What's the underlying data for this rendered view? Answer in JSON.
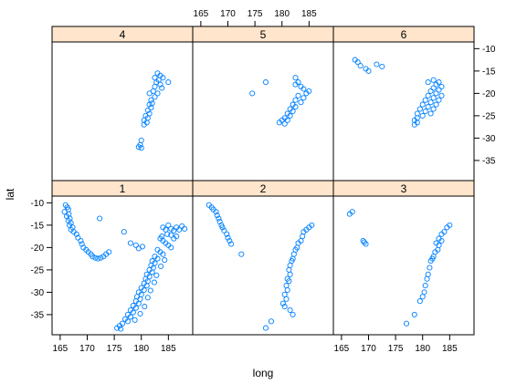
{
  "colors": {
    "point": "#0080ff",
    "strip": "#ffe5cc",
    "frame": "#000000"
  },
  "chart_data": {
    "type": "scatter",
    "layout": "lattice 3x2",
    "xlabel": "long",
    "ylabel": "lat",
    "xlim": [
      163.5,
      189.5
    ],
    "ylim": [
      -39.5,
      -8.5
    ],
    "xticks": [
      165,
      170,
      175,
      180,
      185
    ],
    "yticks": [
      -35,
      -30,
      -25,
      -20,
      -15,
      -10
    ],
    "xtick_labels": [
      "165",
      "170",
      "175",
      "180",
      "185"
    ],
    "ytick_labels": [
      "-35",
      "-30",
      "-25",
      "-20",
      "-15",
      "-10"
    ],
    "panels": [
      {
        "label": "1",
        "points": [
          [
            166,
            -10.5
          ],
          [
            166.3,
            -11
          ],
          [
            166.5,
            -11.5
          ],
          [
            165.8,
            -12
          ],
          [
            166.6,
            -12.5
          ],
          [
            166.2,
            -13
          ],
          [
            166.8,
            -13.5
          ],
          [
            166.5,
            -14
          ],
          [
            167,
            -14.5
          ],
          [
            166.7,
            -15
          ],
          [
            167.3,
            -15.5
          ],
          [
            167,
            -16
          ],
          [
            167.5,
            -16.5
          ],
          [
            168,
            -17
          ],
          [
            168.3,
            -17.8
          ],
          [
            168.8,
            -18.5
          ],
          [
            169,
            -19.2
          ],
          [
            169.3,
            -20
          ],
          [
            169.8,
            -20.5
          ],
          [
            170.2,
            -21
          ],
          [
            170.7,
            -21.5
          ],
          [
            171,
            -22
          ],
          [
            171.5,
            -22.3
          ],
          [
            172,
            -22.5
          ],
          [
            172.5,
            -22.3
          ],
          [
            173,
            -22
          ],
          [
            173.5,
            -21.5
          ],
          [
            174,
            -21
          ],
          [
            172.3,
            -13.5
          ],
          [
            176.8,
            -16.5
          ],
          [
            178,
            -19
          ],
          [
            179,
            -19.5
          ],
          [
            179.5,
            -20.2
          ],
          [
            180.2,
            -19.8
          ],
          [
            184,
            -15.5
          ],
          [
            184.5,
            -16
          ],
          [
            185,
            -15
          ],
          [
            185.5,
            -15.8
          ],
          [
            186,
            -16.2
          ],
          [
            186.5,
            -15.5
          ],
          [
            187,
            -16
          ],
          [
            187.5,
            -15.2
          ],
          [
            188,
            -15.8
          ],
          [
            183.5,
            -18
          ],
          [
            184,
            -18.5
          ],
          [
            184.5,
            -19
          ],
          [
            185,
            -19.5
          ],
          [
            185.5,
            -20
          ],
          [
            183,
            -20.5
          ],
          [
            183.5,
            -21
          ],
          [
            184,
            -21.5
          ],
          [
            182.5,
            -22
          ],
          [
            183,
            -22.5
          ],
          [
            182,
            -23
          ],
          [
            182.5,
            -23.5
          ],
          [
            181.8,
            -24
          ],
          [
            182.2,
            -24.5
          ],
          [
            181.5,
            -25
          ],
          [
            182,
            -25.5
          ],
          [
            181,
            -26
          ],
          [
            181.5,
            -26.5
          ],
          [
            180.8,
            -27
          ],
          [
            181.2,
            -27.5
          ],
          [
            180.5,
            -28
          ],
          [
            181,
            -28.5
          ],
          [
            180,
            -29
          ],
          [
            180.5,
            -29.5
          ],
          [
            179.5,
            -30
          ],
          [
            180,
            -30.5
          ],
          [
            179.2,
            -31
          ],
          [
            179.8,
            -31.5
          ],
          [
            179,
            -32
          ],
          [
            179.5,
            -32.5
          ],
          [
            178.5,
            -33
          ],
          [
            179,
            -33.5
          ],
          [
            178,
            -34
          ],
          [
            178.5,
            -34.5
          ],
          [
            177.5,
            -35
          ],
          [
            178,
            -35.5
          ],
          [
            177,
            -36
          ],
          [
            177.5,
            -36.5
          ],
          [
            176.5,
            -37
          ],
          [
            176,
            -37.5
          ],
          [
            175.5,
            -38
          ],
          [
            176.2,
            -38.2
          ],
          [
            185.5,
            -17.2
          ],
          [
            186,
            -18
          ],
          [
            186.5,
            -17.5
          ],
          [
            184.8,
            -17
          ],
          [
            183.8,
            -17.5
          ],
          [
            184.3,
            -22.8
          ],
          [
            183.6,
            -24.2
          ],
          [
            182.8,
            -26.2
          ],
          [
            182.4,
            -27.8
          ],
          [
            181.7,
            -29.6
          ],
          [
            181.2,
            -31.2
          ],
          [
            180.6,
            -33.2
          ],
          [
            179.8,
            -34.8
          ],
          [
            178.8,
            -36.2
          ]
        ]
      },
      {
        "label": "2",
        "points": [
          [
            166.5,
            -10.5
          ],
          [
            167,
            -11
          ],
          [
            167.3,
            -11.5
          ],
          [
            167.8,
            -12
          ],
          [
            168,
            -12.8
          ],
          [
            168.3,
            -13.5
          ],
          [
            168.5,
            -14.2
          ],
          [
            168.8,
            -15
          ],
          [
            169,
            -15.5
          ],
          [
            169.3,
            -16.2
          ],
          [
            169.8,
            -17
          ],
          [
            170,
            -17.8
          ],
          [
            170.3,
            -18.5
          ],
          [
            170.6,
            -19.2
          ],
          [
            172.5,
            -21.5
          ],
          [
            185.5,
            -15
          ],
          [
            185,
            -15.5
          ],
          [
            184.5,
            -16
          ],
          [
            184,
            -16.5
          ],
          [
            183.8,
            -17.5
          ],
          [
            183.5,
            -18.5
          ],
          [
            183,
            -19
          ],
          [
            182.8,
            -20
          ],
          [
            182.5,
            -20.5
          ],
          [
            182.2,
            -21.5
          ],
          [
            182,
            -22.5
          ],
          [
            181.8,
            -23
          ],
          [
            181.5,
            -24
          ],
          [
            181.3,
            -25
          ],
          [
            181.5,
            -26
          ],
          [
            181,
            -27
          ],
          [
            181.3,
            -27.5
          ],
          [
            180.8,
            -28.5
          ],
          [
            181,
            -29.5
          ],
          [
            180.5,
            -30.5
          ],
          [
            180.8,
            -31.5
          ],
          [
            180.2,
            -32.5
          ],
          [
            180.5,
            -33.2
          ],
          [
            181.5,
            -34
          ],
          [
            182,
            -35
          ],
          [
            178,
            -36.5
          ],
          [
            177,
            -38
          ]
        ]
      },
      {
        "label": "3",
        "points": [
          [
            166.5,
            -12.5
          ],
          [
            167,
            -12
          ],
          [
            169,
            -18.5
          ],
          [
            169.5,
            -19.2
          ],
          [
            169.2,
            -18.8
          ],
          [
            185,
            -15
          ],
          [
            184.5,
            -15.5
          ],
          [
            184,
            -16.5
          ],
          [
            183.5,
            -17
          ],
          [
            183,
            -18
          ],
          [
            183.5,
            -18.5
          ],
          [
            182.5,
            -19
          ],
          [
            183,
            -19.5
          ],
          [
            182.8,
            -20.5
          ],
          [
            182.3,
            -21
          ],
          [
            182,
            -22
          ],
          [
            181.8,
            -22.5
          ],
          [
            181.5,
            -23
          ],
          [
            181.3,
            -24.5
          ],
          [
            181,
            -26
          ],
          [
            180.8,
            -27
          ],
          [
            180.5,
            -28.5
          ],
          [
            180.3,
            -30
          ],
          [
            180,
            -31
          ],
          [
            179.5,
            -32
          ],
          [
            178.5,
            -35
          ],
          [
            177,
            -37
          ]
        ]
      },
      {
        "label": "4",
        "points": [
          [
            183,
            -15.5
          ],
          [
            183.5,
            -16
          ],
          [
            182.5,
            -16.5
          ],
          [
            184,
            -16.5
          ],
          [
            183.2,
            -17
          ],
          [
            182.8,
            -17.5
          ],
          [
            185,
            -17.5
          ],
          [
            183.5,
            -18
          ],
          [
            182.5,
            -18.5
          ],
          [
            183.8,
            -18.8
          ],
          [
            182.2,
            -19.5
          ],
          [
            183,
            -20
          ],
          [
            181.5,
            -20
          ],
          [
            182.5,
            -20.8
          ],
          [
            181.8,
            -21.5
          ],
          [
            182,
            -22.2
          ],
          [
            181.5,
            -22.5
          ],
          [
            181.8,
            -23.2
          ],
          [
            181.2,
            -23.8
          ],
          [
            181.5,
            -24.5
          ],
          [
            180.8,
            -25
          ],
          [
            181.2,
            -25.5
          ],
          [
            180.5,
            -26
          ],
          [
            181,
            -26.5
          ],
          [
            180.5,
            -27
          ],
          [
            180,
            -30.5
          ],
          [
            179.8,
            -31.5
          ],
          [
            179.5,
            -32
          ],
          [
            180,
            -32.2
          ]
        ]
      },
      {
        "label": "5",
        "points": [
          [
            182.5,
            -16.5
          ],
          [
            183,
            -17.5
          ],
          [
            182.5,
            -18
          ],
          [
            183.5,
            -18.5
          ],
          [
            184,
            -19
          ],
          [
            185,
            -19.5
          ],
          [
            184.5,
            -20
          ],
          [
            183,
            -20.5
          ],
          [
            184,
            -21
          ],
          [
            182.5,
            -21.5
          ],
          [
            183.5,
            -22
          ],
          [
            182,
            -22.5
          ],
          [
            182.5,
            -23
          ],
          [
            181.5,
            -23.5
          ],
          [
            182,
            -24
          ],
          [
            181,
            -24.5
          ],
          [
            181.5,
            -25
          ],
          [
            180.5,
            -25.5
          ],
          [
            181,
            -26
          ],
          [
            180,
            -26
          ],
          [
            179.5,
            -26.5
          ],
          [
            180.5,
            -26.8
          ],
          [
            177,
            -17.5
          ],
          [
            174.5,
            -20
          ]
        ]
      },
      {
        "label": "6",
        "points": [
          [
            167.5,
            -12.5
          ],
          [
            168,
            -13
          ],
          [
            168.5,
            -13.8
          ],
          [
            169.5,
            -14.5
          ],
          [
            170,
            -15
          ],
          [
            171.5,
            -13.5
          ],
          [
            172.5,
            -14
          ],
          [
            181,
            -17.5
          ],
          [
            182,
            -17
          ],
          [
            183,
            -17.5
          ],
          [
            182.5,
            -18
          ],
          [
            183.5,
            -18.5
          ],
          [
            182,
            -18.8
          ],
          [
            183,
            -19.2
          ],
          [
            181.5,
            -19.5
          ],
          [
            182.5,
            -20
          ],
          [
            183.5,
            -20.5
          ],
          [
            181,
            -20.5
          ],
          [
            182,
            -21
          ],
          [
            183,
            -21.5
          ],
          [
            180.5,
            -21.5
          ],
          [
            181.5,
            -22
          ],
          [
            182.5,
            -22.5
          ],
          [
            180,
            -22.5
          ],
          [
            181,
            -23
          ],
          [
            182,
            -23.5
          ],
          [
            179.5,
            -23.5
          ],
          [
            180.5,
            -24
          ],
          [
            181.5,
            -24.5
          ],
          [
            179,
            -24.5
          ],
          [
            180,
            -25
          ],
          [
            179,
            -25.5
          ],
          [
            178.5,
            -26
          ],
          [
            179,
            -26.5
          ],
          [
            178.5,
            -27
          ]
        ]
      }
    ]
  }
}
